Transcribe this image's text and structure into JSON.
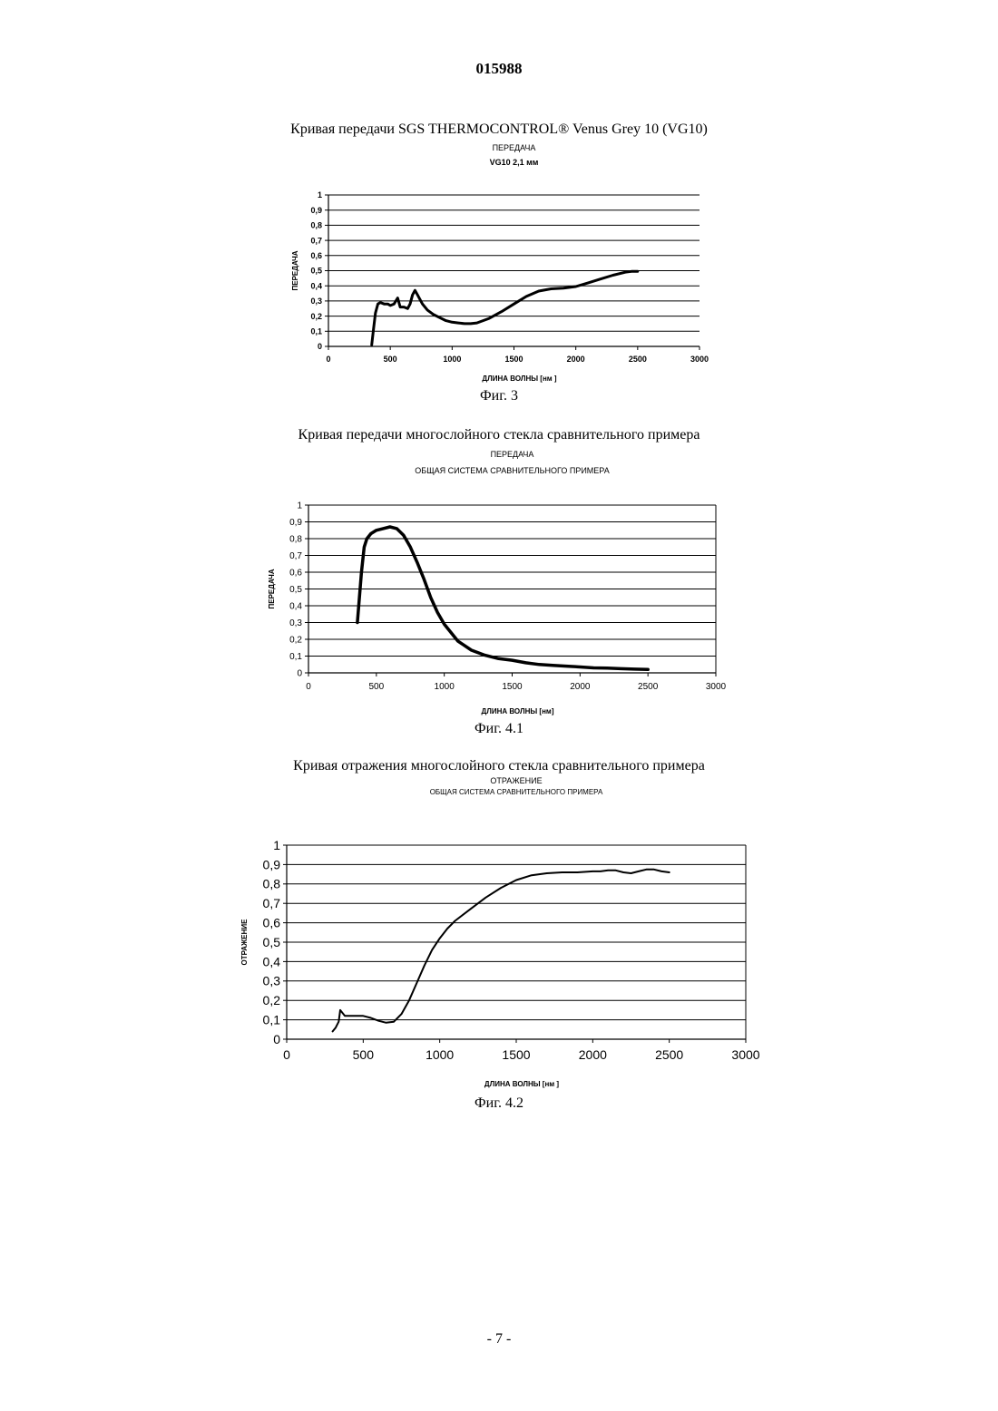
{
  "document": {
    "doc_number": "015988",
    "page_number": "- 7 -"
  },
  "figures": [
    {
      "caption": "Кривая передачи SGS THERMOCONTROL® Venus Grey 10 (VG10)",
      "figure_label": "Фиг. 3"
    },
    {
      "caption": "Кривая передачи многослойного стекла сравнительного примера",
      "figure_label": "Фиг. 4.1"
    },
    {
      "caption": "Кривая отражения многослойного стекла сравнительного примера",
      "figure_label": "Фиг. 4.2"
    }
  ],
  "chart_data": [
    {
      "type": "line",
      "title": "ПЕРЕДАЧА",
      "subtitle": "VG10 2,1 мм",
      "xlabel": "ДЛИНА ВОЛНЫ [нм ]",
      "ylabel": "ПЕРЕДАЧА",
      "xlim": [
        0,
        3000
      ],
      "ylim": [
        0,
        1
      ],
      "x_ticks": [
        "0",
        "500",
        "1000",
        "1500",
        "2000",
        "2500",
        "3000"
      ],
      "y_ticks": [
        "0",
        "0,1",
        "0,2",
        "0,3",
        "0,4",
        "0,5",
        "0,6",
        "0,7",
        "0,8",
        "0,9",
        "1"
      ],
      "grid": true,
      "series": [
        {
          "x": [
            350,
            365,
            380,
            400,
            420,
            450,
            480,
            500,
            530,
            560,
            580,
            610,
            640,
            660,
            680,
            700,
            720,
            760,
            800,
            850,
            900,
            950,
            1000,
            1050,
            1100,
            1150,
            1200,
            1300,
            1400,
            1500,
            1600,
            1700,
            1800,
            1900,
            2000,
            2100,
            2200,
            2300,
            2400,
            2450,
            2500
          ],
          "y": [
            0.01,
            0.12,
            0.22,
            0.28,
            0.29,
            0.28,
            0.28,
            0.27,
            0.28,
            0.32,
            0.26,
            0.26,
            0.25,
            0.28,
            0.34,
            0.37,
            0.34,
            0.28,
            0.24,
            0.21,
            0.19,
            0.17,
            0.16,
            0.155,
            0.15,
            0.15,
            0.155,
            0.185,
            0.23,
            0.28,
            0.33,
            0.365,
            0.38,
            0.385,
            0.395,
            0.42,
            0.445,
            0.47,
            0.49,
            0.495,
            0.495
          ]
        }
      ]
    },
    {
      "type": "line",
      "title": "ПЕРЕДАЧА",
      "subtitle": "ОБЩАЯ СИСТЕМА СРАВНИТЕЛЬНОГО ПРИМЕРА",
      "xlabel": "ДЛИНА ВОЛНЫ [нм]",
      "ylabel": "ПЕРЕДАЧА",
      "xlim": [
        0,
        3000
      ],
      "ylim": [
        0,
        1
      ],
      "x_ticks": [
        "0",
        "500",
        "1000",
        "1500",
        "2000",
        "2500",
        "3000"
      ],
      "y_ticks": [
        "0",
        "0,1",
        "0,2",
        "0,3",
        "0,4",
        "0,5",
        "0,6",
        "0,7",
        "0,8",
        "0,9",
        "1"
      ],
      "grid": true,
      "series": [
        {
          "x": [
            360,
            370,
            390,
            410,
            430,
            460,
            500,
            550,
            600,
            650,
            700,
            750,
            800,
            850,
            900,
            950,
            1000,
            1100,
            1200,
            1300,
            1400,
            1500,
            1600,
            1700,
            1800,
            1900,
            2000,
            2100,
            2200,
            2300,
            2400,
            2500
          ],
          "y": [
            0.3,
            0.4,
            0.6,
            0.75,
            0.8,
            0.83,
            0.85,
            0.86,
            0.87,
            0.86,
            0.82,
            0.75,
            0.66,
            0.56,
            0.45,
            0.36,
            0.29,
            0.19,
            0.135,
            0.105,
            0.085,
            0.075,
            0.06,
            0.05,
            0.045,
            0.04,
            0.035,
            0.03,
            0.028,
            0.025,
            0.022,
            0.02
          ]
        }
      ]
    },
    {
      "type": "line",
      "title": "ОТРАЖЕНИЕ",
      "subtitle": "ОБЩАЯ СИСТЕМА СРАВНИТЕЛЬНОГО ПРИМЕРА",
      "xlabel": "ДЛИНА ВОЛНЫ [нм ]",
      "ylabel": "ОТРАЖЕНИЕ",
      "xlim": [
        0,
        3000
      ],
      "ylim": [
        0,
        1
      ],
      "x_ticks": [
        "0",
        "500",
        "1000",
        "1500",
        "2000",
        "2500",
        "3000"
      ],
      "y_ticks": [
        "0",
        "0,1",
        "0,2",
        "0,3",
        "0,4",
        "0,5",
        "0,6",
        "0,7",
        "0,8",
        "0,9",
        "1"
      ],
      "grid": true,
      "series": [
        {
          "x": [
            300,
            320,
            340,
            350,
            360,
            380,
            400,
            450,
            500,
            550,
            600,
            650,
            700,
            750,
            800,
            850,
            900,
            950,
            1000,
            1050,
            1100,
            1200,
            1300,
            1400,
            1500,
            1600,
            1700,
            1800,
            1900,
            2000,
            2050,
            2100,
            2150,
            2200,
            2250,
            2300,
            2350,
            2400,
            2450,
            2500
          ],
          "y": [
            0.04,
            0.06,
            0.09,
            0.15,
            0.14,
            0.12,
            0.12,
            0.12,
            0.12,
            0.11,
            0.095,
            0.085,
            0.09,
            0.13,
            0.2,
            0.29,
            0.38,
            0.46,
            0.52,
            0.57,
            0.61,
            0.67,
            0.73,
            0.78,
            0.82,
            0.845,
            0.855,
            0.86,
            0.86,
            0.865,
            0.865,
            0.87,
            0.87,
            0.86,
            0.855,
            0.865,
            0.875,
            0.875,
            0.865,
            0.86
          ]
        }
      ]
    }
  ]
}
